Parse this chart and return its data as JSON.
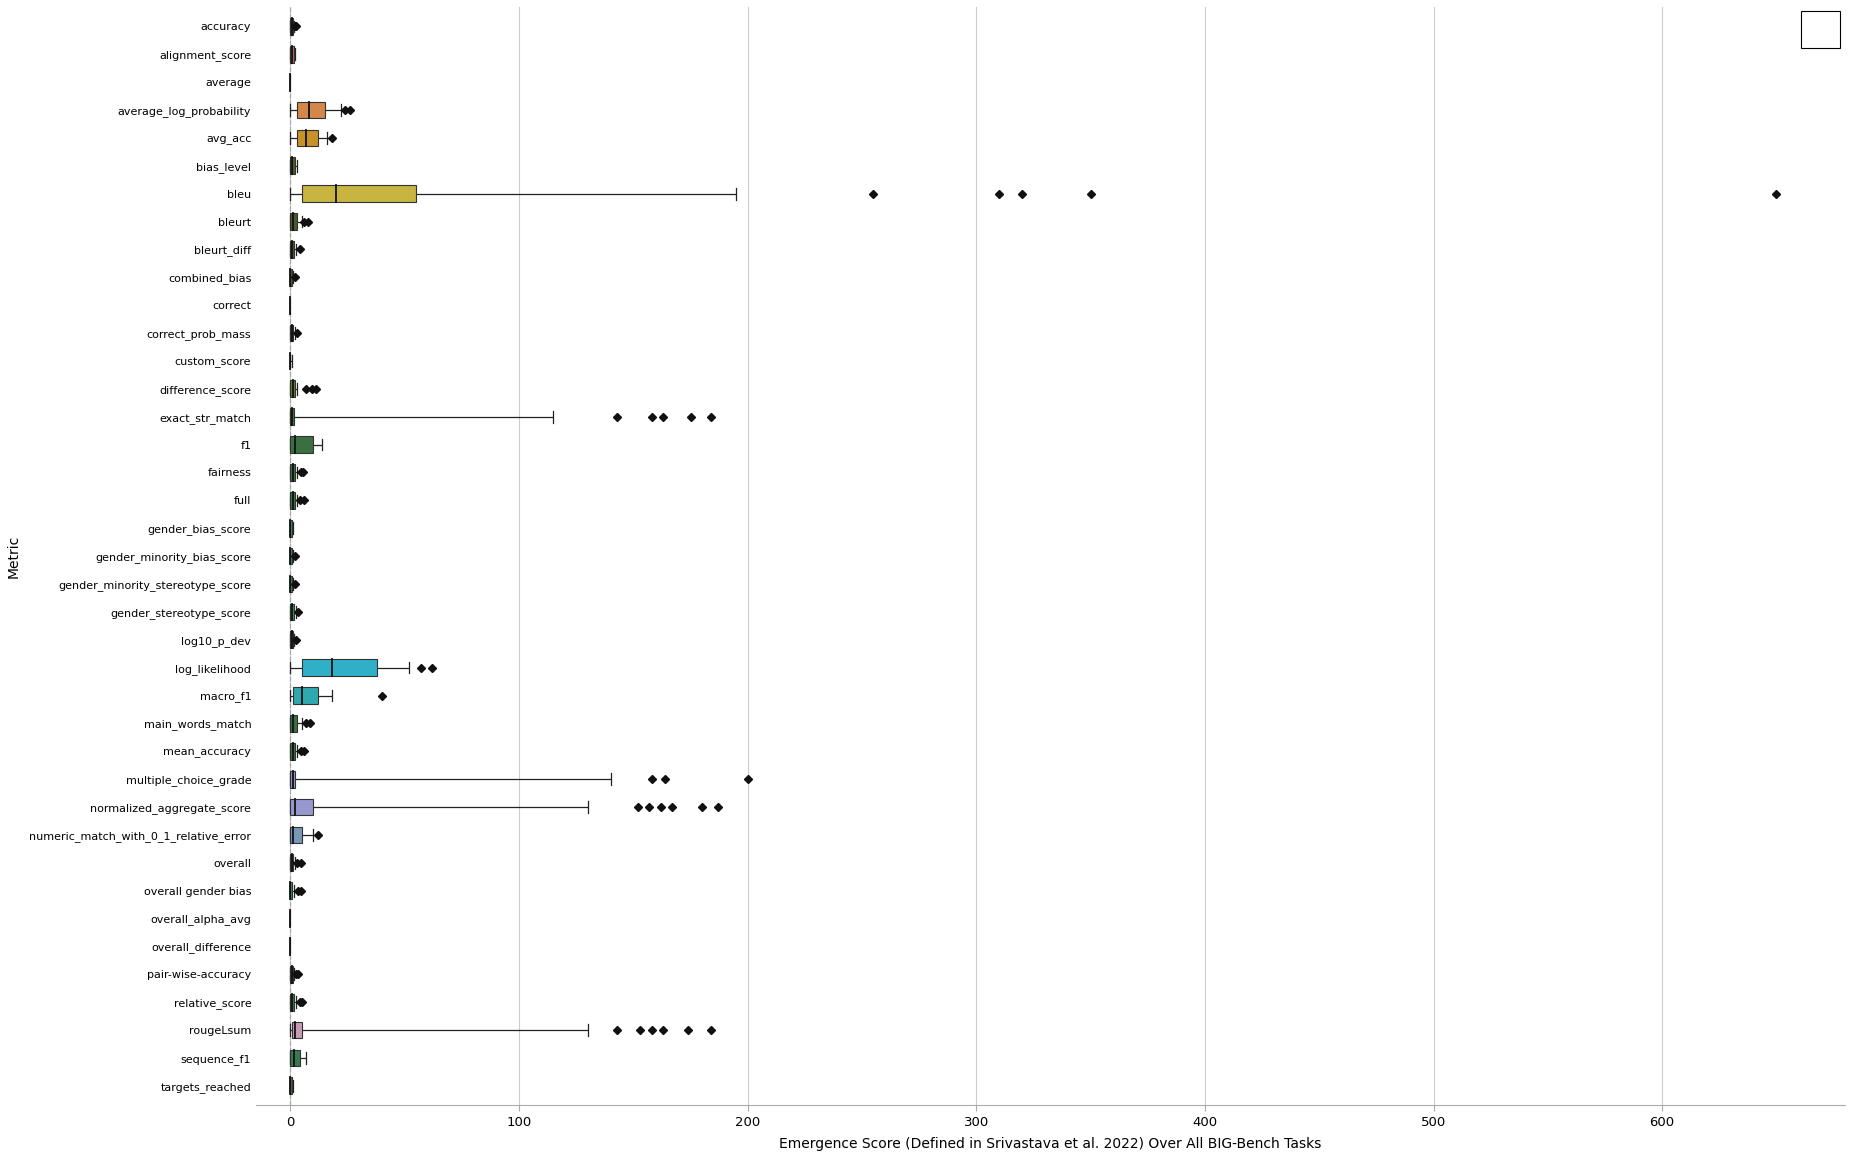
{
  "metrics": [
    "accuracy",
    "alignment_score",
    "average",
    "average_log_probability",
    "avg_acc",
    "bias_level",
    "bleu",
    "bleurt",
    "bleurt_diff",
    "combined_bias",
    "correct",
    "correct_prob_mass",
    "custom_score",
    "difference_score",
    "exact_str_match",
    "f1",
    "fairness",
    "full",
    "gender_bias_score",
    "gender_minority_bias_score",
    "gender_minority_stereotype_score",
    "gender_stereotype_score",
    "log10_p_dev",
    "log_likelihood",
    "macro_f1",
    "main_words_match",
    "mean_accuracy",
    "multiple_choice_grade",
    "normalized_aggregate_score",
    "numeric_match_with_0_1_relative_error",
    "overall",
    "overall gender bias",
    "overall_alpha_avg",
    "overall_difference",
    "pair-wise-accuracy",
    "relative_score",
    "rougeLsum",
    "sequence_f1",
    "targets_reached"
  ],
  "box_data": {
    "accuracy": {
      "q1": 0.0,
      "median": 0.5,
      "q3": 1.0,
      "whisker_lo": 0.0,
      "whisker_hi": 1.5,
      "outliers": [
        2.0,
        2.5
      ],
      "color": "#9B7B8B"
    },
    "alignment_score": {
      "q1": 0.0,
      "median": 0.5,
      "q3": 1.5,
      "whisker_lo": 0.0,
      "whisker_hi": 2.0,
      "outliers": [],
      "color": "#C06060"
    },
    "average": {
      "q1": 0.0,
      "median": 0.0,
      "q3": 0.0,
      "whisker_lo": 0.0,
      "whisker_hi": 0.0,
      "outliers": [],
      "color": "#888888"
    },
    "average_log_probability": {
      "q1": 3.0,
      "median": 8.0,
      "q3": 15.0,
      "whisker_lo": 0.0,
      "whisker_hi": 22.0,
      "outliers": [
        24.0,
        26.0
      ],
      "color": "#D4874A"
    },
    "avg_acc": {
      "q1": 3.0,
      "median": 7.0,
      "q3": 12.0,
      "whisker_lo": 0.0,
      "whisker_hi": 16.0,
      "outliers": [
        18.0
      ],
      "color": "#C8922A"
    },
    "bias_level": {
      "q1": 0.0,
      "median": 0.5,
      "q3": 2.0,
      "whisker_lo": 0.0,
      "whisker_hi": 3.0,
      "outliers": [],
      "color": "#4A5A28"
    },
    "bleu": {
      "q1": 5.0,
      "median": 20.0,
      "q3": 55.0,
      "whisker_lo": 0.0,
      "whisker_hi": 195.0,
      "outliers": [
        255.0,
        310.0,
        320.0,
        350.0,
        650.0
      ],
      "color": "#C8B440"
    },
    "bleurt": {
      "q1": 0.0,
      "median": 1.0,
      "q3": 3.0,
      "whisker_lo": 0.0,
      "whisker_hi": 5.0,
      "outliers": [
        6.0,
        7.5
      ],
      "color": "#4A5A28"
    },
    "bleurt_diff": {
      "q1": 0.0,
      "median": 0.5,
      "q3": 1.5,
      "whisker_lo": 0.0,
      "whisker_hi": 2.5,
      "outliers": [
        4.0
      ],
      "color": "#4A5A28"
    },
    "combined_bias": {
      "q1": 0.0,
      "median": 0.0,
      "q3": 0.5,
      "whisker_lo": 0.0,
      "whisker_hi": 1.0,
      "outliers": [
        2.0
      ],
      "color": "#4A5A28"
    },
    "correct": {
      "q1": 0.0,
      "median": 0.0,
      "q3": 0.0,
      "whisker_lo": 0.0,
      "whisker_hi": 0.0,
      "outliers": [],
      "color": "#888888"
    },
    "correct_prob_mass": {
      "q1": 0.0,
      "median": 0.5,
      "q3": 1.0,
      "whisker_lo": 0.0,
      "whisker_hi": 2.0,
      "outliers": [
        3.0
      ],
      "color": "#4A5A28"
    },
    "custom_score": {
      "q1": 0.0,
      "median": 0.0,
      "q3": 0.0,
      "whisker_lo": 0.0,
      "whisker_hi": 0.5,
      "outliers": [],
      "color": "#888888"
    },
    "difference_score": {
      "q1": 0.0,
      "median": 1.0,
      "q3": 2.0,
      "whisker_lo": 0.0,
      "whisker_hi": 3.0,
      "outliers": [
        7.0,
        9.5,
        11.0
      ],
      "color": "#5A8030"
    },
    "exact_str_match": {
      "q1": 0.0,
      "median": 0.5,
      "q3": 1.5,
      "whisker_lo": 0.0,
      "whisker_hi": 115.0,
      "outliers": [
        143.0,
        158.0,
        163.0,
        175.0,
        184.0
      ],
      "color": "#3A7040"
    },
    "f1": {
      "q1": 0.0,
      "median": 2.0,
      "q3": 10.0,
      "whisker_lo": 0.0,
      "whisker_hi": 14.0,
      "outliers": [],
      "color": "#3A7040"
    },
    "fairness": {
      "q1": 0.0,
      "median": 1.0,
      "q3": 2.0,
      "whisker_lo": 0.0,
      "whisker_hi": 3.0,
      "outliers": [
        4.5,
        5.5
      ],
      "color": "#3A7040"
    },
    "full": {
      "q1": 0.0,
      "median": 1.0,
      "q3": 2.0,
      "whisker_lo": 0.0,
      "whisker_hi": 3.0,
      "outliers": [
        4.0,
        6.0
      ],
      "color": "#3A7040"
    },
    "gender_bias_score": {
      "q1": 0.0,
      "median": 0.0,
      "q3": 0.5,
      "whisker_lo": 0.0,
      "whisker_hi": 1.0,
      "outliers": [],
      "color": "#3A8858"
    },
    "gender_minority_bias_score": {
      "q1": 0.0,
      "median": 0.0,
      "q3": 0.5,
      "whisker_lo": 0.0,
      "whisker_hi": 1.0,
      "outliers": [
        2.0
      ],
      "color": "#3A8858"
    },
    "gender_minority_stereotype_score": {
      "q1": 0.0,
      "median": 0.0,
      "q3": 0.5,
      "whisker_lo": 0.0,
      "whisker_hi": 1.0,
      "outliers": [
        2.0
      ],
      "color": "#3A8858"
    },
    "gender_stereotype_score": {
      "q1": 0.0,
      "median": 0.5,
      "q3": 1.5,
      "whisker_lo": 0.0,
      "whisker_hi": 2.5,
      "outliers": [
        3.5
      ],
      "color": "#3A8858"
    },
    "log10_p_dev": {
      "q1": 0.0,
      "median": 0.5,
      "q3": 1.0,
      "whisker_lo": 0.0,
      "whisker_hi": 1.5,
      "outliers": [
        2.5
      ],
      "color": "#3A8858"
    },
    "log_likelihood": {
      "q1": 5.0,
      "median": 18.0,
      "q3": 38.0,
      "whisker_lo": 0.0,
      "whisker_hi": 52.0,
      "outliers": [
        57.0,
        62.0
      ],
      "color": "#30B0C8"
    },
    "macro_f1": {
      "q1": 1.0,
      "median": 5.0,
      "q3": 12.0,
      "whisker_lo": 0.0,
      "whisker_hi": 18.0,
      "outliers": [
        40.0
      ],
      "color": "#30A8B0"
    },
    "main_words_match": {
      "q1": 0.0,
      "median": 1.0,
      "q3": 3.0,
      "whisker_lo": 0.0,
      "whisker_hi": 5.0,
      "outliers": [
        7.0,
        8.5
      ],
      "color": "#3A7040"
    },
    "mean_accuracy": {
      "q1": 0.0,
      "median": 1.0,
      "q3": 2.0,
      "whisker_lo": 0.0,
      "whisker_hi": 3.0,
      "outliers": [
        4.5,
        6.0
      ],
      "color": "#3A7040"
    },
    "multiple_choice_grade": {
      "q1": 0.0,
      "median": 1.0,
      "q3": 2.0,
      "whisker_lo": 0.0,
      "whisker_hi": 140.0,
      "outliers": [
        158.0,
        164.0,
        200.0
      ],
      "color": "#8898C8"
    },
    "normalized_aggregate_score": {
      "q1": 0.0,
      "median": 2.0,
      "q3": 10.0,
      "whisker_lo": 0.0,
      "whisker_hi": 130.0,
      "outliers": [
        152.0,
        157.0,
        162.0,
        167.0,
        180.0,
        187.0
      ],
      "color": "#9898D0"
    },
    "numeric_match_with_0_1_relative_error": {
      "q1": 0.0,
      "median": 1.0,
      "q3": 5.0,
      "whisker_lo": 0.0,
      "whisker_hi": 10.0,
      "outliers": [
        12.0
      ],
      "color": "#7898B8"
    },
    "overall": {
      "q1": 0.0,
      "median": 0.5,
      "q3": 1.0,
      "whisker_lo": 0.0,
      "whisker_hi": 2.0,
      "outliers": [
        3.0,
        4.5
      ],
      "color": "#3A7040"
    },
    "overall gender bias": {
      "q1": 0.0,
      "median": 0.0,
      "q3": 0.5,
      "whisker_lo": 0.0,
      "whisker_hi": 1.5,
      "outliers": [
        3.5,
        4.5
      ],
      "color": "#3A8858"
    },
    "overall_alpha_avg": {
      "q1": 0.0,
      "median": 0.0,
      "q3": 0.0,
      "whisker_lo": 0.0,
      "whisker_hi": 0.0,
      "outliers": [],
      "color": "#888888"
    },
    "overall_difference": {
      "q1": 0.0,
      "median": 0.0,
      "q3": 0.0,
      "whisker_lo": 0.0,
      "whisker_hi": 0.0,
      "outliers": [],
      "color": "#888888"
    },
    "pair-wise-accuracy": {
      "q1": 0.0,
      "median": 0.5,
      "q3": 1.0,
      "whisker_lo": 0.0,
      "whisker_hi": 1.5,
      "outliers": [
        2.5,
        3.5
      ],
      "color": "#3A7040"
    },
    "relative_score": {
      "q1": 0.0,
      "median": 0.5,
      "q3": 1.5,
      "whisker_lo": 0.0,
      "whisker_hi": 2.5,
      "outliers": [
        4.0,
        5.0
      ],
      "color": "#3A7040"
    },
    "rougeLsum": {
      "q1": 0.5,
      "median": 2.0,
      "q3": 5.0,
      "whisker_lo": 0.0,
      "whisker_hi": 130.0,
      "outliers": [
        143.0,
        153.0,
        158.0,
        163.0,
        174.0,
        184.0
      ],
      "color": "#C89AB8"
    },
    "sequence_f1": {
      "q1": 0.0,
      "median": 1.5,
      "q3": 4.0,
      "whisker_lo": 0.0,
      "whisker_hi": 7.0,
      "outliers": [],
      "color": "#3A7850"
    },
    "targets_reached": {
      "q1": 0.0,
      "median": 0.0,
      "q3": 0.5,
      "whisker_lo": 0.0,
      "whisker_hi": 1.0,
      "outliers": [],
      "color": "#3A7040"
    }
  },
  "xlabel": "Emergence Score (Defined in Srivastava et al. 2022) Over All BIG-Bench Tasks",
  "ylabel": "Metric",
  "xlim": [
    -15,
    680
  ],
  "xticks": [
    0,
    100,
    200,
    300,
    400,
    500,
    600
  ],
  "background_color": "#FFFFFF",
  "plot_bg_color": "#FFFFFF",
  "grid_color": "#CCCCCC"
}
